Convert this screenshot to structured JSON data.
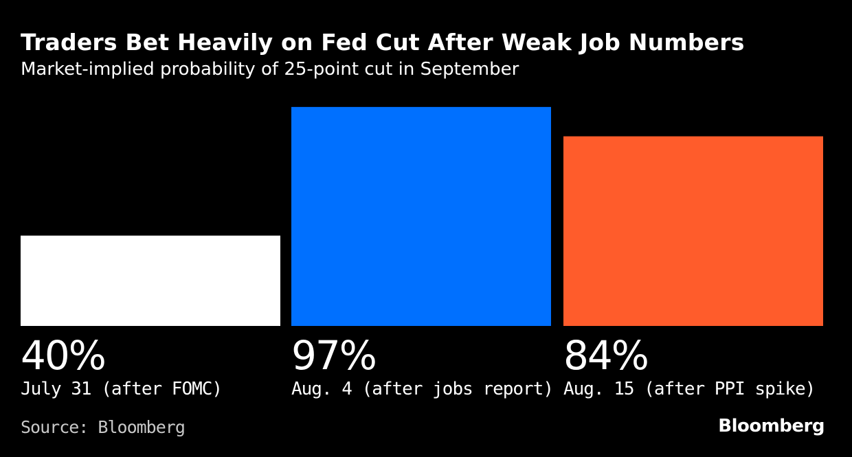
{
  "chart_data": {
    "type": "bar",
    "title": "Traders Bet Heavily on Fed Cut After Weak Job Numbers",
    "subtitle": "Market-implied probability of 25-point cut in September",
    "categories": [
      "July 31 (after FOMC)",
      "Aug. 4 (after jobs report)",
      "Aug. 15 (after PPI spike)"
    ],
    "values": [
      40,
      97,
      84
    ],
    "value_labels": [
      "40%",
      "97%",
      "84%"
    ],
    "colors": [
      "#FFFFFF",
      "#0070FF",
      "#FF5C2B"
    ],
    "ylim": [
      0,
      100
    ],
    "grid": false,
    "source": "Source: Bloomberg"
  },
  "branding": {
    "logo": "Bloomberg"
  }
}
